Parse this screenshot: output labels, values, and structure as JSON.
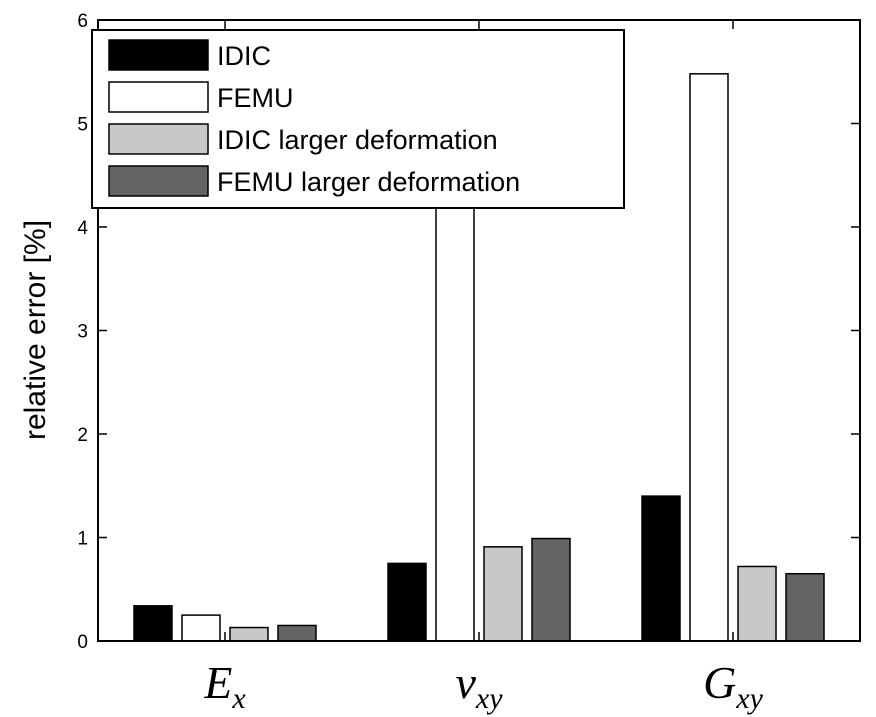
{
  "chart_data": {
    "type": "bar",
    "categories": [
      {
        "base": "E",
        "sub": "x"
      },
      {
        "base": "ν",
        "sub": "xy"
      },
      {
        "base": "G",
        "sub": "xy"
      }
    ],
    "series": [
      {
        "name": "IDIC",
        "color": "#000000",
        "values": [
          0.34,
          0.75,
          1.4
        ]
      },
      {
        "name": "FEMU",
        "color": "#ffffff",
        "values": [
          0.25,
          4.25,
          5.48
        ]
      },
      {
        "name": "IDIC larger deformation",
        "color": "#c8c8c8",
        "values": [
          0.13,
          0.91,
          0.72
        ]
      },
      {
        "name": "FEMU larger deformation",
        "color": "#646464",
        "values": [
          0.15,
          0.99,
          0.65
        ]
      }
    ],
    "ylabel": "relative error [%]",
    "ylim": [
      0,
      6
    ],
    "yticks": [
      "0",
      "1",
      "2",
      "3",
      "4",
      "5",
      "6"
    ],
    "grid": false,
    "legend_position": "top-left"
  }
}
